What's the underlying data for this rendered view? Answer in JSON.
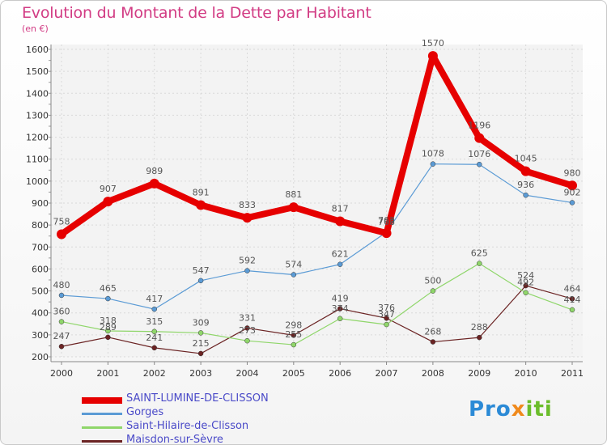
{
  "chart_data": {
    "type": "line",
    "title": "Evolution du Montant de la Dette par Habitant",
    "subtitle": "(en €)",
    "xlabel": "",
    "ylabel": "",
    "categories": [
      "2000",
      "2001",
      "2002",
      "2003",
      "2004",
      "2005",
      "2006",
      "2007",
      "2008",
      "2009",
      "2010",
      "2011"
    ],
    "ylim": [
      200,
      1600
    ],
    "yticks": [
      200,
      300,
      400,
      500,
      600,
      700,
      800,
      900,
      1000,
      1100,
      1200,
      1300,
      1400,
      1500,
      1600
    ],
    "grid": true,
    "legend_position": "bottom-left",
    "series": [
      {
        "name": "SAINT-LUMINE-DE-CLISSON",
        "color": "#e60000",
        "values": [
          758,
          907,
          989,
          891,
          833,
          881,
          817,
          763,
          1570,
          1196,
          1045,
          980
        ]
      },
      {
        "name": "Gorges",
        "color": "#5b9bd5",
        "values": [
          480,
          465,
          417,
          547,
          592,
          574,
          621,
          768,
          1078,
          1076,
          936,
          902
        ]
      },
      {
        "name": "Saint-Hilaire-de-Clisson",
        "color": "#8fd66a",
        "values": [
          360,
          318,
          315,
          309,
          273,
          255,
          374,
          347,
          500,
          625,
          492,
          414
        ]
      },
      {
        "name": "Maisdon-sur-Sèvre",
        "color": "#6b2323",
        "values": [
          247,
          289,
          241,
          215,
          331,
          298,
          419,
          376,
          268,
          288,
          524,
          464
        ]
      }
    ]
  },
  "brand": {
    "name": "Proxiti",
    "parts": [
      "Pro",
      "x",
      "iti"
    ]
  }
}
